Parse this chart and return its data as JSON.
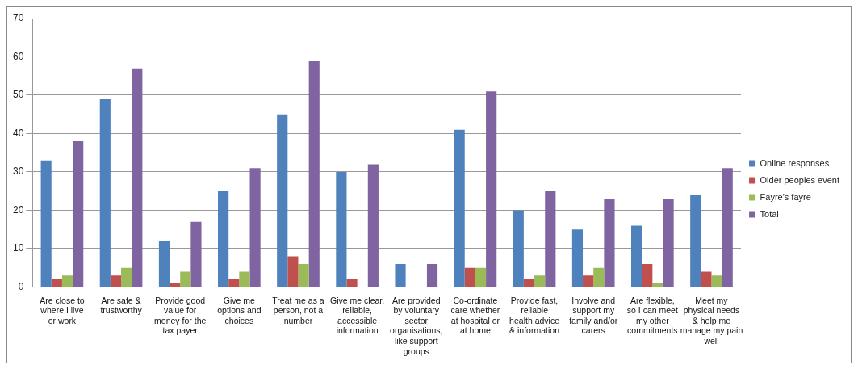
{
  "chart_data": {
    "type": "bar",
    "categories": [
      "Are close to where I live or work",
      "Are safe & trustworthy",
      "Provide good value for money for the tax payer",
      "Give me options and choices",
      "Treat me as a person, not a number",
      "Give me clear, reliable, accessible information",
      "Are provided by voluntary sector organisations, like support groups",
      "Co-ordinate care whether at hospital or at home",
      "Provide fast, reliable health advice & information",
      "Involve and support my family and/or carers",
      "Are flexible, so I can meet my other commitments",
      "Meet my physical needs & help me manage my pain well"
    ],
    "series": [
      {
        "name": "Online responses",
        "color": "#4f81bd",
        "values": [
          33,
          49,
          12,
          25,
          45,
          30,
          6,
          41,
          20,
          15,
          16,
          24
        ]
      },
      {
        "name": "Older peoples event",
        "color": "#c0504d",
        "values": [
          2,
          3,
          1,
          2,
          8,
          2,
          0,
          5,
          2,
          3,
          6,
          4
        ]
      },
      {
        "name": "Fayre's fayre",
        "color": "#9bbb59",
        "values": [
          3,
          5,
          4,
          4,
          6,
          0,
          0,
          5,
          3,
          5,
          1,
          3
        ]
      },
      {
        "name": "Total",
        "color": "#8064a2",
        "values": [
          38,
          57,
          17,
          31,
          59,
          32,
          6,
          51,
          25,
          23,
          23,
          31
        ]
      }
    ],
    "ylim": [
      0,
      70
    ],
    "yticks": [
      0,
      10,
      20,
      30,
      40,
      50,
      60,
      70
    ],
    "grid": "y",
    "legend": "right"
  }
}
